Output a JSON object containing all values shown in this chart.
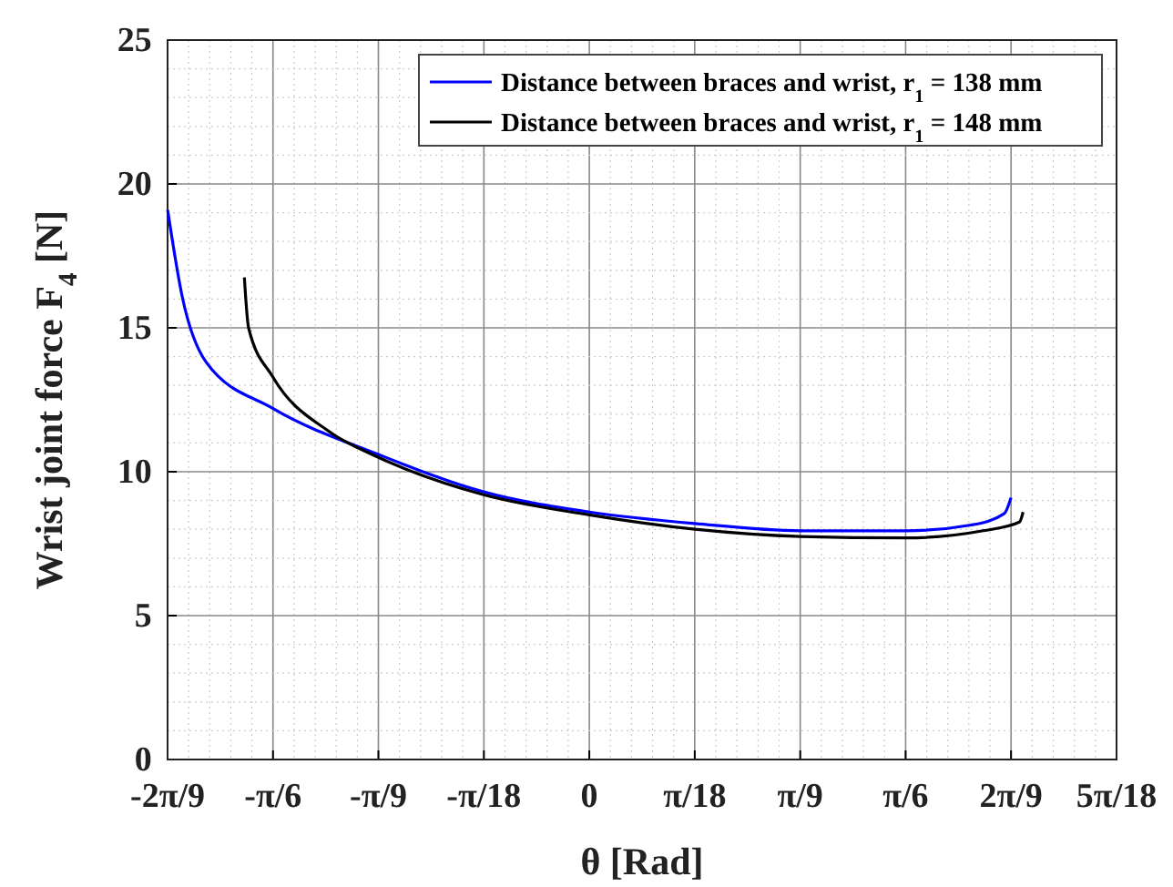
{
  "chart_data": {
    "type": "line",
    "xlabel": "θ [Rad]",
    "ylabel": "Wrist joint force F$_{4}$ [N]",
    "xlim": [
      -0.6981,
      0.8727
    ],
    "xticks": [
      {
        "value": -0.6981,
        "label": "-2π/9"
      },
      {
        "value": -0.5236,
        "label": "-π/6"
      },
      {
        "value": -0.3491,
        "label": "-π/9"
      },
      {
        "value": -0.1745,
        "label": "-π/18"
      },
      {
        "value": 0,
        "label": "0"
      },
      {
        "value": 0.1745,
        "label": "π/18"
      },
      {
        "value": 0.3491,
        "label": "π/9"
      },
      {
        "value": 0.5236,
        "label": "π/6"
      },
      {
        "value": 0.6981,
        "label": "2π/9"
      },
      {
        "value": 0.8727,
        "label": "5π/18"
      }
    ],
    "ylim": [
      0,
      25
    ],
    "yticks": [
      0,
      5,
      10,
      15,
      20,
      25
    ],
    "grid": true,
    "legend": "top right",
    "line_style": "solid",
    "marker": "none",
    "series": [
      {
        "name": "Distance between braces and wrist, r$_{1}$ = 138 mm",
        "color": "#0000ff",
        "x": [
          -0.698,
          -0.674,
          -0.634,
          -0.524,
          -0.349,
          -0.175,
          0,
          0.175,
          0.349,
          0.524,
          0.632,
          0.687,
          0.698
        ],
        "values": [
          19.1,
          16.1,
          13.8,
          12.2,
          10.6,
          9.3,
          8.6,
          8.2,
          7.95,
          7.95,
          8.15,
          8.55,
          9.1
        ]
      },
      {
        "name": "Distance between braces and wrist, r$_{1}$ = 148 mm",
        "color": "#000000",
        "x": [
          -0.571,
          -0.564,
          -0.524,
          -0.431,
          -0.349,
          -0.175,
          0,
          0.175,
          0.349,
          0.524,
          0.652,
          0.712,
          0.718
        ],
        "values": [
          16.75,
          15.0,
          13.3,
          11.4,
          10.5,
          9.2,
          8.5,
          8.0,
          7.75,
          7.7,
          7.95,
          8.25,
          8.6
        ]
      }
    ]
  }
}
